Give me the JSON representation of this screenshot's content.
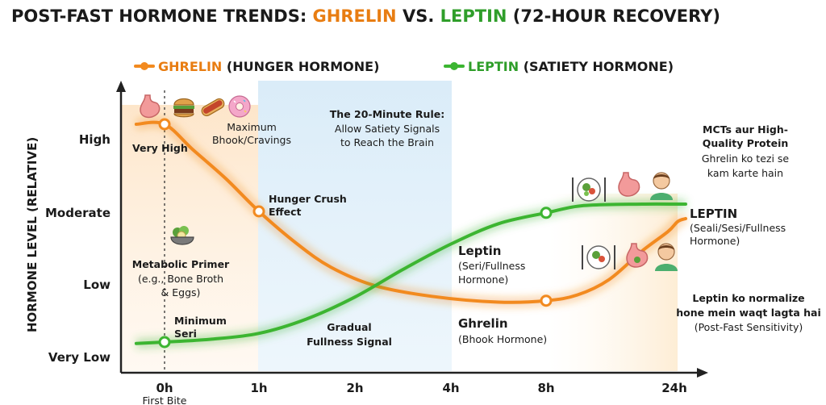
{
  "colors": {
    "ghrelin": "#f28a1f",
    "leptin": "#3cb531",
    "zone_blue": "#d8ebf8",
    "zone_orange": "#fde3c4",
    "axis": "#222222",
    "text": "#1a1a1a"
  },
  "title": {
    "part1": "POST-FAST HORMONE TRENDS: ",
    "ghrelin": "GHRELIN",
    "vs": " VS. ",
    "leptin": "LEPTIN",
    "part2": " (72-HOUR RECOVERY)"
  },
  "legend": {
    "ghrelin_name": "GHRELIN",
    "ghrelin_desc": "(HUNGER HORMONE)",
    "leptin_name": "LEPTIN",
    "leptin_desc": "(SATIETY HORMONE)"
  },
  "icons": {
    "top": [
      "stomach-icon",
      "burger-icon",
      "hotdog-icon",
      "donut-icon"
    ],
    "primer": "salad-bowl-icon",
    "right_upper": [
      "plate-icon",
      "stomach-icon",
      "person-icon"
    ],
    "right_lower": [
      "plate-icon",
      "stomach-icon",
      "person-icon"
    ]
  },
  "chart_data": {
    "type": "line",
    "xlabel": "",
    "ylabel": "HORMONE LEVEL (RELATIVE)",
    "x_ticks": [
      "0h",
      "1h",
      "2h",
      "4h",
      "8h",
      "24h"
    ],
    "x_sub": "First Bite",
    "y_ticks": [
      "Very Low",
      "Low",
      "Moderate",
      "High"
    ],
    "ylim": [
      0,
      3
    ],
    "series": [
      {
        "name": "GHRELIN",
        "end_label": "Ghrelin",
        "end_sub": "(Bhook Hormone)",
        "points": [
          [
            -0.3,
            3.1
          ],
          [
            0,
            3.1
          ],
          [
            0.3,
            2.75
          ],
          [
            0.65,
            2.35
          ],
          [
            1,
            1.9
          ],
          [
            1.4,
            1.45
          ],
          [
            1.75,
            1.13
          ],
          [
            2.2,
            0.88
          ],
          [
            2.8,
            0.73
          ],
          [
            3.5,
            0.65
          ],
          [
            4,
            0.67
          ],
          [
            4.5,
            0.75
          ],
          [
            5,
            0.96
          ],
          [
            5.5,
            1.35
          ],
          [
            5.9,
            1.62
          ],
          [
            6.3,
            1.76
          ],
          [
            7,
            1.8
          ]
        ],
        "markers": [
          0,
          1,
          4
        ]
      },
      {
        "name": "LEPTIN",
        "end_label": "Leptin",
        "end_sub": "(Seri/Fullness Hormone)",
        "points": [
          [
            -0.3,
            0.08
          ],
          [
            0,
            0.1
          ],
          [
            0.5,
            0.14
          ],
          [
            1,
            0.22
          ],
          [
            1.5,
            0.42
          ],
          [
            2,
            0.72
          ],
          [
            2.5,
            1.1
          ],
          [
            3,
            1.45
          ],
          [
            3.5,
            1.73
          ],
          [
            4,
            1.88
          ],
          [
            4.6,
            1.98
          ],
          [
            5.5,
            2.0
          ],
          [
            6.3,
            2.0
          ],
          [
            7,
            2.0
          ]
        ],
        "markers": [
          0,
          4
        ]
      }
    ],
    "annotations": {
      "very_high": "Very High",
      "max_bhook": [
        "Maximum",
        "Bhook/Cravings"
      ],
      "hunger_crush": [
        "Hunger Crush",
        "Effect"
      ],
      "rule_title": "The 20-Minute Rule:",
      "rule_text": [
        "Allow Satiety Signals",
        "to Reach the Brain"
      ],
      "primer_title": "Metabolic Primer",
      "primer_text": [
        "(e.g., Bone Broth",
        "& Eggs)"
      ],
      "min_seri": [
        "Minimum",
        "Seri"
      ],
      "gradual": [
        "Gradual",
        "Fullness Signal"
      ],
      "mcts": [
        "MCTs aur High-",
        "Quality Protein"
      ],
      "mcts_text": [
        "Ghrelin ko tezi se",
        "kam karte hain"
      ],
      "leptin_right_title": "LEPTIN",
      "leptin_right_sub": [
        "(Seali/Sesi/Fullness",
        "Hormone)"
      ],
      "normalize": [
        "Leptin ko normalize",
        "hone mein waqt lagta hai",
        "(Post-Fast Sensitivity)"
      ]
    }
  }
}
